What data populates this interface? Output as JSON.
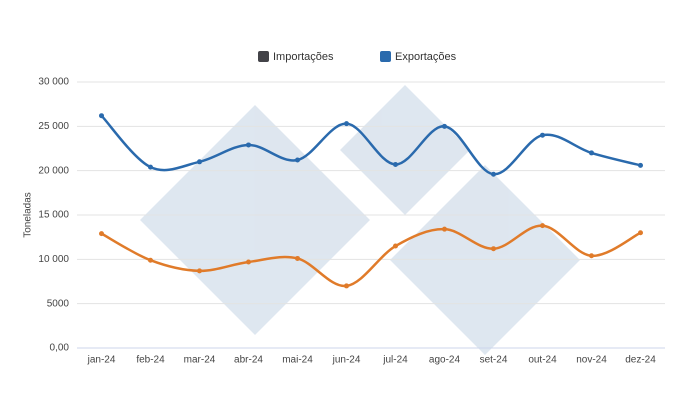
{
  "chart_data": {
    "type": "line",
    "y_label": "Toneladas",
    "categories": [
      "jan-24",
      "feb-24",
      "mar-24",
      "abr-24",
      "mai-24",
      "jun-24",
      "jul-24",
      "ago-24",
      "set-24",
      "out-24",
      "nov-24",
      "dez-24"
    ],
    "series": [
      {
        "name": "Importações",
        "color": "#e07b2a",
        "legend_color": "#434348",
        "values": [
          12900,
          9900,
          8700,
          9700,
          10100,
          7000,
          11500,
          13400,
          11200,
          13800,
          10400,
          13000
        ]
      },
      {
        "name": "Exportações",
        "color": "#2a6aad",
        "legend_color": "#2a6aad",
        "values": [
          26200,
          20400,
          21000,
          22900,
          21200,
          25300,
          20700,
          25000,
          19600,
          24000,
          22000,
          20600
        ]
      }
    ],
    "ylim": [
      0,
      30000
    ],
    "yticks": [
      {
        "value": 0,
        "label": "0,00"
      },
      5000,
      {
        "value": 10000,
        "label": "10 000"
      },
      {
        "value": 15000,
        "label": "15 000"
      },
      {
        "value": 20000,
        "label": "20 000"
      },
      {
        "value": 25000,
        "label": "25 000"
      },
      {
        "value": 30000,
        "label": "30 000"
      }
    ],
    "grid": true
  }
}
